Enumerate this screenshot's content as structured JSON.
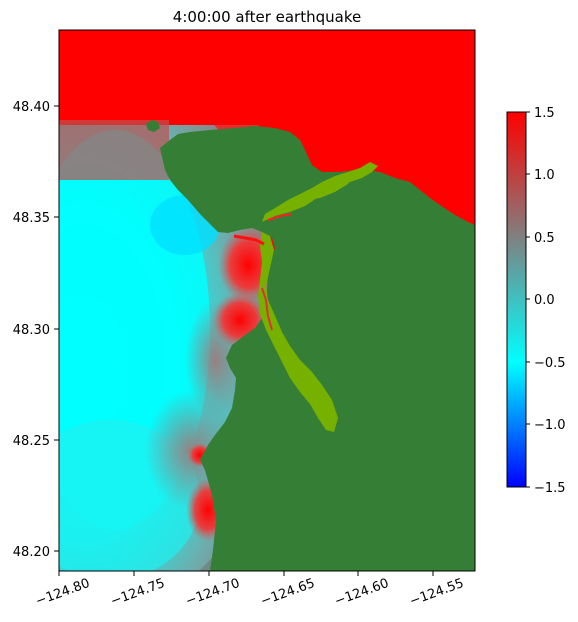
{
  "title": "4:00:00 after earthquake",
  "map": {
    "x_ticks": [
      "−124.80",
      "−124.75",
      "−124.70",
      "−124.65",
      "−124.60",
      "−124.55"
    ],
    "y_ticks": [
      "48.40",
      "48.35",
      "48.30",
      "48.25",
      "48.20"
    ],
    "x_range": [
      -124.8,
      -124.522
    ],
    "y_range": [
      48.192,
      48.434
    ],
    "tick_label_rotation": "x labels rotated ~20 degrees",
    "land_color": "#357e35",
    "intertidal_color": "#77b100"
  },
  "colorbar": {
    "ticks": [
      "1.5",
      "1.0",
      "0.5",
      "0.0",
      "−0.5",
      "−1.0",
      "−1.5"
    ],
    "range": [
      -1.5,
      1.5
    ],
    "colormap": [
      "#0000ff",
      "#00ffff",
      "#808080",
      "#ff0000"
    ]
  }
}
